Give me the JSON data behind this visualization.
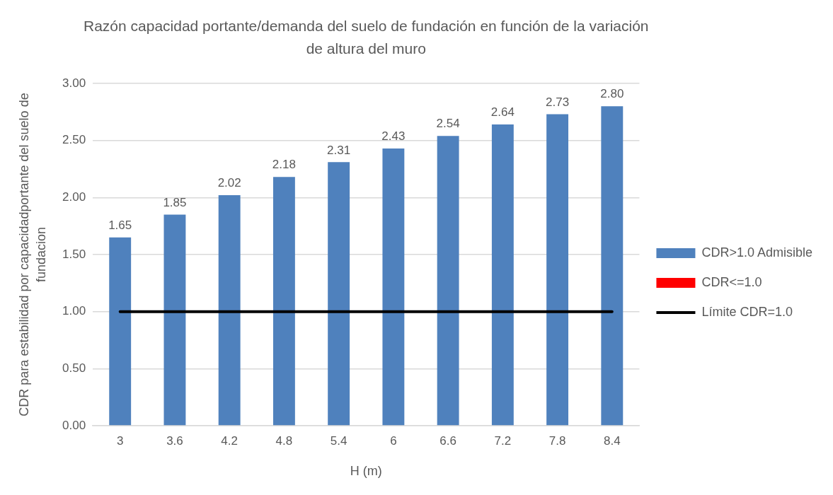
{
  "chart_data": {
    "type": "bar",
    "title": "Razón capacidad portante/demanda del suelo de fundación en función de la variación de altura del muro",
    "xlabel": "H (m)",
    "ylabel": "CDR para estabilidad por capacidadportante del suelo de fundacion",
    "categories": [
      "3",
      "3.6",
      "4.2",
      "4.8",
      "5.4",
      "6",
      "6.6",
      "7.2",
      "7.8",
      "8.4"
    ],
    "stacked": true,
    "series": [
      {
        "name": "CDR>1.0 Admisible",
        "color": "#4f81bd",
        "values": [
          1.65,
          1.85,
          2.02,
          2.18,
          2.31,
          2.43,
          2.54,
          2.64,
          2.73,
          2.8
        ],
        "value_labels": [
          "1.65",
          "1.85",
          "2.02",
          "2.18",
          "2.31",
          "2.43",
          "2.54",
          "2.64",
          "2.73",
          "2.80"
        ]
      },
      {
        "name": "CDR<=1.0",
        "color": "#ff0000",
        "values": [
          null,
          null,
          null,
          null,
          null,
          null,
          null,
          null,
          null,
          null
        ]
      },
      {
        "name": "Límite CDR=1.0",
        "type": "line",
        "color": "#000000",
        "values": [
          1,
          1,
          1,
          1,
          1,
          1,
          1,
          1,
          1,
          1
        ]
      }
    ],
    "ylim": [
      0,
      3
    ],
    "yticks": [
      {
        "value": 0,
        "label": "0.00"
      },
      {
        "value": 0.5,
        "label": "0.50"
      },
      {
        "value": 1,
        "label": "1.00"
      },
      {
        "value": 1.5,
        "label": "1.50"
      },
      {
        "value": 2,
        "label": "2.00"
      },
      {
        "value": 2.5,
        "label": "2.50"
      },
      {
        "value": 3,
        "label": "3.00"
      }
    ],
    "grid": "y",
    "legend": "right",
    "marker": "none"
  }
}
